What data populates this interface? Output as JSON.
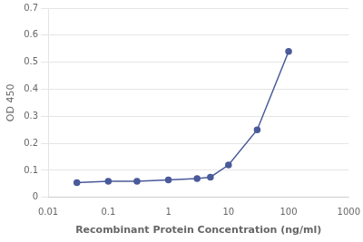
{
  "chart_data": {
    "type": "line",
    "x": [
      0.03,
      0.1,
      0.3,
      1.0,
      3.0,
      5.0,
      10.0,
      30.0,
      100.0
    ],
    "values": [
      0.055,
      0.06,
      0.06,
      0.065,
      0.07,
      0.075,
      0.12,
      0.25,
      0.54
    ],
    "color": "#4A5A9A",
    "marker": "circle",
    "xlabel": "Recombinant Protein Concentration (ng/ml)",
    "ylabel": "OD 450",
    "log": "x",
    "xlim": [
      0.01,
      1000
    ],
    "xticks": [
      0.01,
      0.1,
      1,
      10,
      100,
      1000
    ],
    "ylim": [
      0,
      0.7
    ],
    "yticks": [
      0,
      0.1,
      0.2,
      0.3,
      0.4,
      0.5,
      0.6,
      0.7
    ],
    "grid": "y"
  }
}
